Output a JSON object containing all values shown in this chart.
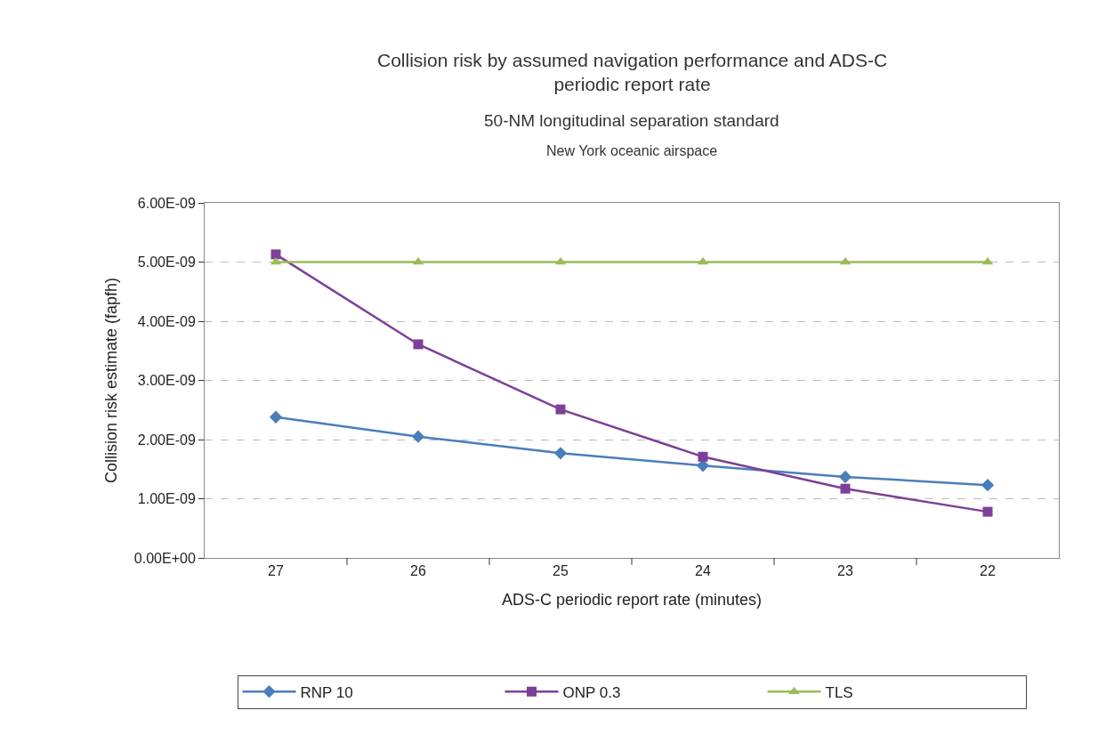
{
  "chart_data": {
    "type": "line",
    "title": "Collision risk by assumed navigation performance and ADS-C periodic report rate",
    "subtitle": "50-NM longitudinal separation standard",
    "annotations": [
      "New York oceanic airspace"
    ],
    "xlabel": "ADS-C periodic report rate (minutes)",
    "ylabel": "Collision risk estimate (fapfh)",
    "categories": [
      "27",
      "26",
      "25",
      "24",
      "23",
      "22"
    ],
    "series": [
      {
        "name": "RNP 10",
        "color": "#4a7ebb",
        "marker": "diamond",
        "values": [
          2.38e-09,
          2.05e-09,
          1.77e-09,
          1.56e-09,
          1.37e-09,
          1.23e-09
        ]
      },
      {
        "name": "ONP 0.3",
        "color": "#7d3f98",
        "marker": "square",
        "values": [
          5.13e-09,
          3.61e-09,
          2.51e-09,
          1.71e-09,
          1.17e-09,
          7.8e-10
        ]
      },
      {
        "name": "TLS",
        "color": "#9bbb59",
        "marker": "triangle",
        "values": [
          5e-09,
          5e-09,
          5e-09,
          5e-09,
          5e-09,
          5e-09
        ]
      }
    ],
    "ylim": [
      0,
      6e-09
    ],
    "yticks": [
      {
        "value": 0,
        "label": "0.00E+00"
      },
      {
        "value": 1e-09,
        "label": "1.00E-09"
      },
      {
        "value": 2e-09,
        "label": "2.00E-09"
      },
      {
        "value": 3e-09,
        "label": "3.00E-09"
      },
      {
        "value": 4e-09,
        "label": "4.00E-09"
      },
      {
        "value": 5e-09,
        "label": "5.00E-09"
      },
      {
        "value": 6e-09,
        "label": "6.00E-09"
      }
    ],
    "grid": "y",
    "legend": "bottom",
    "line_style": "solid"
  }
}
